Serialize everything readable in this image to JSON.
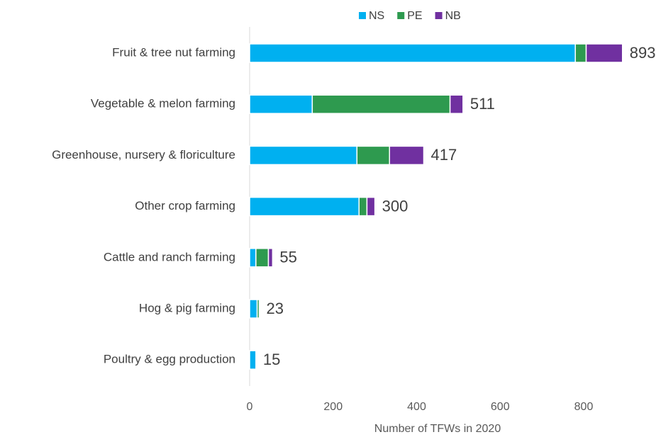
{
  "chart_data": {
    "type": "stacked-bar-horizontal",
    "categories": [
      "Fruit & tree nut farming",
      "Vegetable & melon farming",
      "Greenhouse, nursery & floriculture",
      "Other crop farming",
      "Cattle and ranch farming",
      "Hog & pig farming",
      "Poultry & egg production"
    ],
    "series": [
      {
        "name": "NS",
        "color": "#00b0f0",
        "values": [
          780,
          150,
          257,
          262,
          15,
          18,
          15
        ]
      },
      {
        "name": "PE",
        "color": "#2e9a4f",
        "values": [
          26,
          330,
          78,
          19,
          30,
          5,
          0
        ]
      },
      {
        "name": "NB",
        "color": "#7030a0",
        "values": [
          87,
          31,
          82,
          19,
          10,
          0,
          0
        ]
      }
    ],
    "totals": [
      893,
      511,
      417,
      300,
      55,
      23,
      15
    ],
    "xlabel": "Number of TFWs in 2020",
    "xlim": [
      0,
      900
    ],
    "xticks": [
      0,
      200,
      400,
      600,
      800
    ],
    "legend": "top"
  }
}
